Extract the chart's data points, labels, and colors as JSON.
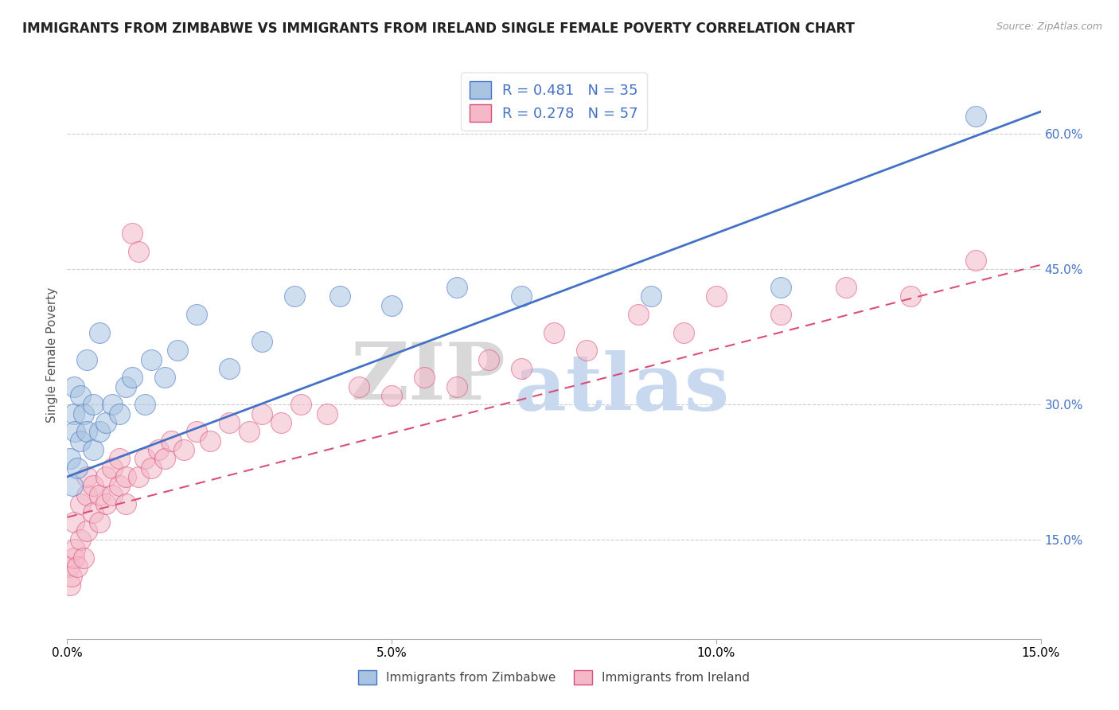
{
  "title": "IMMIGRANTS FROM ZIMBABWE VS IMMIGRANTS FROM IRELAND SINGLE FEMALE POVERTY CORRELATION CHART",
  "source": "Source: ZipAtlas.com",
  "ylabel": "Single Female Poverty",
  "legend_label1": "Immigrants from Zimbabwe",
  "legend_label2": "Immigrants from Ireland",
  "r1": 0.481,
  "n1": 35,
  "r2": 0.278,
  "n2": 57,
  "color_zimbabwe": "#a8c4e0",
  "color_ireland": "#f4b8c8",
  "color_line_zimbabwe": "#4472c4",
  "color_line_ireland": "#d94f7a",
  "watermark_zip": "ZIP",
  "watermark_atlas": "atlas",
  "watermark_color_zip": "#d8d8d8",
  "watermark_color_atlas": "#c8d8ee",
  "xlim": [
    0.0,
    0.15
  ],
  "ylim": [
    0.04,
    0.67
  ],
  "yticks": [
    0.15,
    0.3,
    0.45,
    0.6
  ],
  "xticks": [
    0.0,
    0.05,
    0.1,
    0.15
  ],
  "line_zimbabwe_y0": 0.22,
  "line_zimbabwe_y1": 0.625,
  "line_ireland_y0": 0.175,
  "line_ireland_y1": 0.455,
  "zimbabwe_x": [
    0.0005,
    0.0008,
    0.001,
    0.001,
    0.0012,
    0.0015,
    0.002,
    0.002,
    0.0025,
    0.003,
    0.003,
    0.004,
    0.004,
    0.005,
    0.005,
    0.006,
    0.007,
    0.008,
    0.009,
    0.01,
    0.012,
    0.013,
    0.015,
    0.017,
    0.02,
    0.025,
    0.03,
    0.035,
    0.042,
    0.05,
    0.06,
    0.07,
    0.09,
    0.11,
    0.14
  ],
  "zimbabwe_y": [
    0.24,
    0.21,
    0.29,
    0.32,
    0.27,
    0.23,
    0.26,
    0.31,
    0.29,
    0.27,
    0.35,
    0.3,
    0.25,
    0.27,
    0.38,
    0.28,
    0.3,
    0.29,
    0.32,
    0.33,
    0.3,
    0.35,
    0.33,
    0.36,
    0.4,
    0.34,
    0.37,
    0.42,
    0.42,
    0.41,
    0.43,
    0.42,
    0.42,
    0.43,
    0.62
  ],
  "ireland_x": [
    0.0003,
    0.0005,
    0.0007,
    0.001,
    0.001,
    0.0012,
    0.0015,
    0.002,
    0.002,
    0.0025,
    0.003,
    0.003,
    0.003,
    0.004,
    0.004,
    0.005,
    0.005,
    0.006,
    0.006,
    0.007,
    0.007,
    0.008,
    0.008,
    0.009,
    0.009,
    0.01,
    0.011,
    0.011,
    0.012,
    0.013,
    0.014,
    0.015,
    0.016,
    0.018,
    0.02,
    0.022,
    0.025,
    0.028,
    0.03,
    0.033,
    0.036,
    0.04,
    0.045,
    0.05,
    0.055,
    0.06,
    0.065,
    0.07,
    0.075,
    0.08,
    0.088,
    0.095,
    0.1,
    0.11,
    0.12,
    0.13,
    0.14
  ],
  "ireland_y": [
    0.12,
    0.1,
    0.11,
    0.13,
    0.17,
    0.14,
    0.12,
    0.15,
    0.19,
    0.13,
    0.16,
    0.2,
    0.22,
    0.18,
    0.21,
    0.17,
    0.2,
    0.19,
    0.22,
    0.2,
    0.23,
    0.21,
    0.24,
    0.22,
    0.19,
    0.49,
    0.47,
    0.22,
    0.24,
    0.23,
    0.25,
    0.24,
    0.26,
    0.25,
    0.27,
    0.26,
    0.28,
    0.27,
    0.29,
    0.28,
    0.3,
    0.29,
    0.32,
    0.31,
    0.33,
    0.32,
    0.35,
    0.34,
    0.38,
    0.36,
    0.4,
    0.38,
    0.42,
    0.4,
    0.43,
    0.42,
    0.46
  ]
}
